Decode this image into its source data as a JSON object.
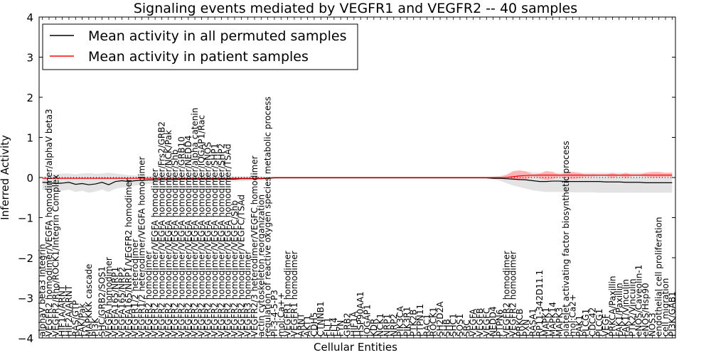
{
  "chart_data": {
    "type": "line",
    "title": "Signaling events mediated by VEGFR1 and VEGFR2 -- 40 samples",
    "xlabel": "Cellular Entities",
    "ylabel": "Inferred Activity",
    "ylim": [
      -4,
      4
    ],
    "yticks": [
      -4,
      -3,
      -2,
      -1,
      0,
      1,
      2,
      3,
      4
    ],
    "grid": false,
    "legend_position": "top-left",
    "legend": [
      {
        "label": "Mean activity in all permuted samples",
        "color": "#000000"
      },
      {
        "label": "Mean activity in patient samples",
        "color": "#ff0000"
      }
    ],
    "categories": [
      "alphaV beta3 Integrin",
      "VEGFR2 homodimer/VEGFA homodimer/alphaV beta3",
      "VEGFR2/Rho/ROCK1/Integrin Complex",
      "HIF1A/ARNT",
      "HIF2A/ARNT",
      "RAS/GTP",
      "FAK/Pak",
      "MAPKKK cascade",
      "PI3K",
      "SHC/GRB2/SOS1",
      "VEGFA homodimer",
      "VEGFA165/NRP1",
      "VEGFA165/NRP2",
      "VEGFA165/NRP1/VEGFR2 homodimer",
      "VEGFR1/2 heterodimer",
      "VEGFR1/2 heterodimer/VEGFA homodimer",
      "VEGFR2 homodimer",
      "VEGFR2 homodimer/VEGFA homodimer",
      "VEGFR2 homodimer/VEGFA homodimer/Frs2/GRB2",
      "VEGFR2 homodimer/VEGFA homodimer/NCK/Pak",
      "VEGFR2 homodimer/VEGFA homodimer/Shb",
      "VEGFR2 homodimer/VEGFA homodimer/GRB10",
      "VEGFR2 homodimer/VEGFA homodimer/NEDD4",
      "VEGFR2 homodimer/VEGFA homodimer/alpha catenin",
      "VEGFR2 homodimer/VEGFA homodimer/IQGAP1/Rac",
      "VEGFR2 homodimer/VEGFA homodimer/eNOS",
      "VEGFR2 homodimer/VEGFA homodimer/SHP1",
      "VEGFR2 homodimer/VEGFA homodimer/SHP2",
      "VEGFR2 homodimer/VEGFA homodimer/TSAd",
      "VEGFR2 homodimer/VEGFC/Shb",
      "VEGFR2 homodimer/VEGFC/TSAd",
      "VEGFR3 homodimer",
      "VEGFR2/3 heterodimer/VEGFC homodimer",
      "actin cytoskeleton reorganization",
      "regulation of reactive oxygen species metabolic process",
      "PI-3-4-5-P3",
      "mol:Ca++",
      "VEGFR1 homodimer",
      "VEGFR1 homodimer",
      "ARNT",
      "AKT1",
      "CDH5",
      "CTNNB1",
      "FLT1",
      "FLT4",
      "FYN",
      "GRB2",
      "HIF1A",
      "HSP90AA1",
      "IQGAP1",
      "KDR",
      "NCK1",
      "NRP1",
      "NRP2",
      "PIK3CA",
      "PIK3R1",
      "PTK2B",
      "PTPN11",
      "RAC1",
      "ROCK1",
      "SH2D2A",
      "SHB",
      "SHC1",
      "SOS1",
      "SRC",
      "VEGFA",
      "VEGFB",
      "VEGFC",
      "NEDD4",
      "PTPN6",
      "VEGFR2 homodimer",
      "VEGFR2 homodimer",
      "PRKCB",
      "PXN",
      "RASA1",
      "RP11-342D11.1",
      "MAPK1",
      "MAPK14",
      "MAPK3",
      "platelet activating factor biosynthetic process",
      "mol:Ca2+",
      "PAK1",
      "PLCG1",
      "CDC42",
      "PLCG1",
      "VEGF",
      "PRKCA/Paxillin",
      "FAK1/Paxillin",
      "FAK1/Vinculin",
      "PTK2/Vinculin",
      "eNOS/Caveolin-1",
      "eNOS/Hsp90",
      "NOS3",
      "endothelial cell proliferation",
      "cell migration",
      "PI3K/GAB1"
    ],
    "series": [
      {
        "name": "Mean activity in all permuted samples",
        "color": "#000000",
        "values": [
          -0.12,
          -0.13,
          -0.15,
          -0.14,
          -0.12,
          -0.17,
          -0.15,
          -0.18,
          -0.16,
          -0.12,
          -0.18,
          -0.1,
          -0.08,
          -0.1,
          -0.08,
          -0.07,
          -0.06,
          -0.06,
          -0.05,
          -0.05,
          -0.05,
          -0.04,
          -0.04,
          -0.04,
          -0.04,
          -0.04,
          -0.04,
          -0.04,
          -0.04,
          -0.04,
          -0.03,
          -0.03,
          -0.03,
          -0.03,
          -0.02,
          -0.01,
          -0.01,
          -0.01,
          -0.01,
          -0.01,
          -0.01,
          -0.01,
          -0.01,
          -0.01,
          -0.01,
          -0.01,
          -0.01,
          -0.01,
          -0.01,
          -0.01,
          -0.01,
          -0.01,
          -0.01,
          -0.01,
          -0.01,
          -0.01,
          -0.01,
          -0.01,
          -0.01,
          -0.01,
          -0.01,
          -0.01,
          -0.01,
          -0.01,
          -0.01,
          -0.01,
          -0.01,
          -0.01,
          -0.02,
          -0.02,
          -0.03,
          -0.04,
          -0.05,
          -0.06,
          -0.08,
          -0.1,
          -0.1,
          -0.09,
          -0.09,
          -0.1,
          -0.1,
          -0.1,
          -0.1,
          -0.1,
          -0.1,
          -0.11,
          -0.11,
          -0.11,
          -0.12,
          -0.12,
          -0.12,
          -0.13,
          -0.13,
          -0.13,
          -0.13,
          -0.13
        ]
      },
      {
        "name": "Mean activity in patient samples",
        "color": "#ff0000",
        "values": [
          -0.02,
          -0.02,
          -0.02,
          -0.02,
          -0.02,
          -0.02,
          -0.02,
          -0.02,
          -0.02,
          -0.02,
          -0.02,
          -0.02,
          -0.02,
          -0.02,
          -0.02,
          -0.02,
          -0.02,
          -0.02,
          -0.02,
          -0.02,
          -0.02,
          -0.02,
          -0.02,
          -0.02,
          -0.02,
          -0.02,
          -0.02,
          -0.02,
          -0.02,
          -0.02,
          -0.02,
          -0.02,
          -0.02,
          -0.02,
          -0.01,
          0,
          0,
          0,
          0,
          0,
          0,
          0,
          0,
          0,
          0,
          0,
          0,
          0,
          0,
          0,
          0,
          0,
          0,
          0,
          0,
          0,
          0,
          0,
          0,
          0,
          0,
          0,
          0,
          0,
          0,
          0,
          0,
          0,
          0,
          0,
          0,
          0.02,
          0.04,
          0.05,
          0.06,
          0.06,
          0.06,
          0.06,
          0.06,
          0.06,
          0.06,
          0.06,
          0.06,
          0.06,
          0.06,
          0.06,
          0.06,
          0.06,
          0.06,
          0.06,
          0.06,
          0.06,
          0.06,
          0.06,
          0.06,
          0.06
        ]
      }
    ],
    "bands": [
      {
        "name": "permuted samples range",
        "color": "#e0e0e0",
        "upper": [
          0.02,
          0.05,
          0.08,
          0.1,
          0.1,
          0.08,
          0.1,
          0.11,
          0.09,
          0.1,
          0.12,
          0.1,
          0.08,
          0.06,
          0.05,
          0.04,
          0.04,
          0.03,
          0.03,
          0.03,
          0.03,
          0.03,
          0.03,
          0.03,
          0.03,
          0.03,
          0.03,
          0.03,
          0.03,
          0.03,
          0.03,
          0.03,
          0.03,
          0.03,
          0.02,
          0.01,
          0.01,
          0.01,
          0.01,
          0.01,
          0.01,
          0.01,
          0.01,
          0.01,
          0.01,
          0.01,
          0.01,
          0.01,
          0.01,
          0.01,
          0.01,
          0.01,
          0.01,
          0.01,
          0.01,
          0.01,
          0.01,
          0.01,
          0.01,
          0.01,
          0.01,
          0.01,
          0.01,
          0.01,
          0.01,
          0.01,
          0.01,
          0.01,
          0.02,
          0.04,
          0.08,
          0.12,
          0.14,
          0.15,
          0.13,
          0.12,
          0.12,
          0.12,
          0.12,
          0.12,
          0.12,
          0.12,
          0.12,
          0.12,
          0.12,
          0.12,
          0.12,
          0.12,
          0.12,
          0.12,
          0.12,
          0.12,
          0.12,
          0.12,
          0.12,
          0.12
        ],
        "lower": [
          -0.3,
          -0.32,
          -0.34,
          -0.33,
          -0.3,
          -0.36,
          -0.33,
          -0.38,
          -0.35,
          -0.3,
          -0.36,
          -0.28,
          -0.25,
          -0.24,
          -0.2,
          -0.18,
          -0.16,
          -0.15,
          -0.13,
          -0.12,
          -0.11,
          -0.1,
          -0.1,
          -0.1,
          -0.1,
          -0.1,
          -0.1,
          -0.1,
          -0.1,
          -0.1,
          -0.09,
          -0.08,
          -0.07,
          -0.06,
          -0.04,
          -0.02,
          -0.02,
          -0.02,
          -0.02,
          -0.02,
          -0.02,
          -0.02,
          -0.02,
          -0.02,
          -0.02,
          -0.02,
          -0.02,
          -0.02,
          -0.02,
          -0.02,
          -0.02,
          -0.02,
          -0.02,
          -0.02,
          -0.02,
          -0.02,
          -0.02,
          -0.02,
          -0.02,
          -0.02,
          -0.02,
          -0.02,
          -0.02,
          -0.02,
          -0.02,
          -0.02,
          -0.02,
          -0.02,
          -0.04,
          -0.08,
          -0.14,
          -0.2,
          -0.24,
          -0.28,
          -0.32,
          -0.34,
          -0.36,
          -0.36,
          -0.36,
          -0.36,
          -0.37,
          -0.37,
          -0.37,
          -0.37,
          -0.38,
          -0.38,
          -0.38,
          -0.38,
          -0.38,
          -0.38,
          -0.38,
          -0.38,
          -0.38,
          -0.38,
          -0.38,
          -0.38
        ]
      },
      {
        "name": "patient samples range",
        "color": "#ffaaaa",
        "upper": [
          -0.02,
          -0.02,
          -0.02,
          -0.02,
          -0.02,
          -0.02,
          -0.02,
          -0.02,
          -0.02,
          -0.02,
          -0.02,
          -0.02,
          -0.02,
          -0.02,
          -0.02,
          -0.02,
          -0.02,
          -0.02,
          -0.02,
          -0.02,
          -0.02,
          -0.02,
          -0.02,
          -0.02,
          -0.02,
          -0.02,
          -0.02,
          -0.02,
          -0.02,
          -0.02,
          -0.02,
          -0.02,
          -0.02,
          -0.02,
          -0.01,
          0,
          0,
          0,
          0,
          0,
          0,
          0,
          0,
          0,
          0,
          0,
          0,
          0,
          0,
          0,
          0,
          0,
          0,
          0,
          0,
          0,
          0,
          0,
          0,
          0,
          0,
          0,
          0,
          0,
          0,
          0,
          0,
          0,
          0,
          0,
          0.06,
          0.16,
          0.18,
          0.15,
          0.06,
          0.1,
          0.16,
          0.14,
          0.06,
          0.12,
          0.14,
          0.12,
          0.06,
          0.08,
          0.06,
          0.06,
          0.12,
          0.06,
          0.12,
          0.06,
          0.06,
          0.12,
          0.14,
          0.14,
          0.12,
          0.12
        ],
        "lower": [
          -0.02,
          -0.02,
          -0.02,
          -0.02,
          -0.02,
          -0.02,
          -0.02,
          -0.02,
          -0.02,
          -0.02,
          -0.02,
          -0.02,
          -0.02,
          -0.02,
          -0.02,
          -0.02,
          -0.02,
          -0.02,
          -0.02,
          -0.02,
          -0.02,
          -0.02,
          -0.02,
          -0.02,
          -0.02,
          -0.02,
          -0.02,
          -0.02,
          -0.02,
          -0.02,
          -0.02,
          -0.02,
          -0.02,
          -0.02,
          -0.01,
          0,
          0,
          0,
          0,
          0,
          0,
          0,
          0,
          0,
          0,
          0,
          0,
          0,
          0,
          0,
          0,
          0,
          0,
          0,
          0,
          0,
          0,
          0,
          0,
          0,
          0,
          0,
          0,
          0,
          0,
          0,
          0,
          0,
          0,
          0,
          -0.02,
          -0.06,
          -0.08,
          -0.05,
          0.02,
          -0.02,
          -0.06,
          -0.04,
          0.02,
          -0.02,
          -0.04,
          -0.02,
          0.02,
          0.02,
          0.04,
          0.04,
          -0.02,
          0.04,
          -0.02,
          0.04,
          0.04,
          0.02,
          0,
          0,
          0.02,
          0.02
        ]
      }
    ]
  }
}
